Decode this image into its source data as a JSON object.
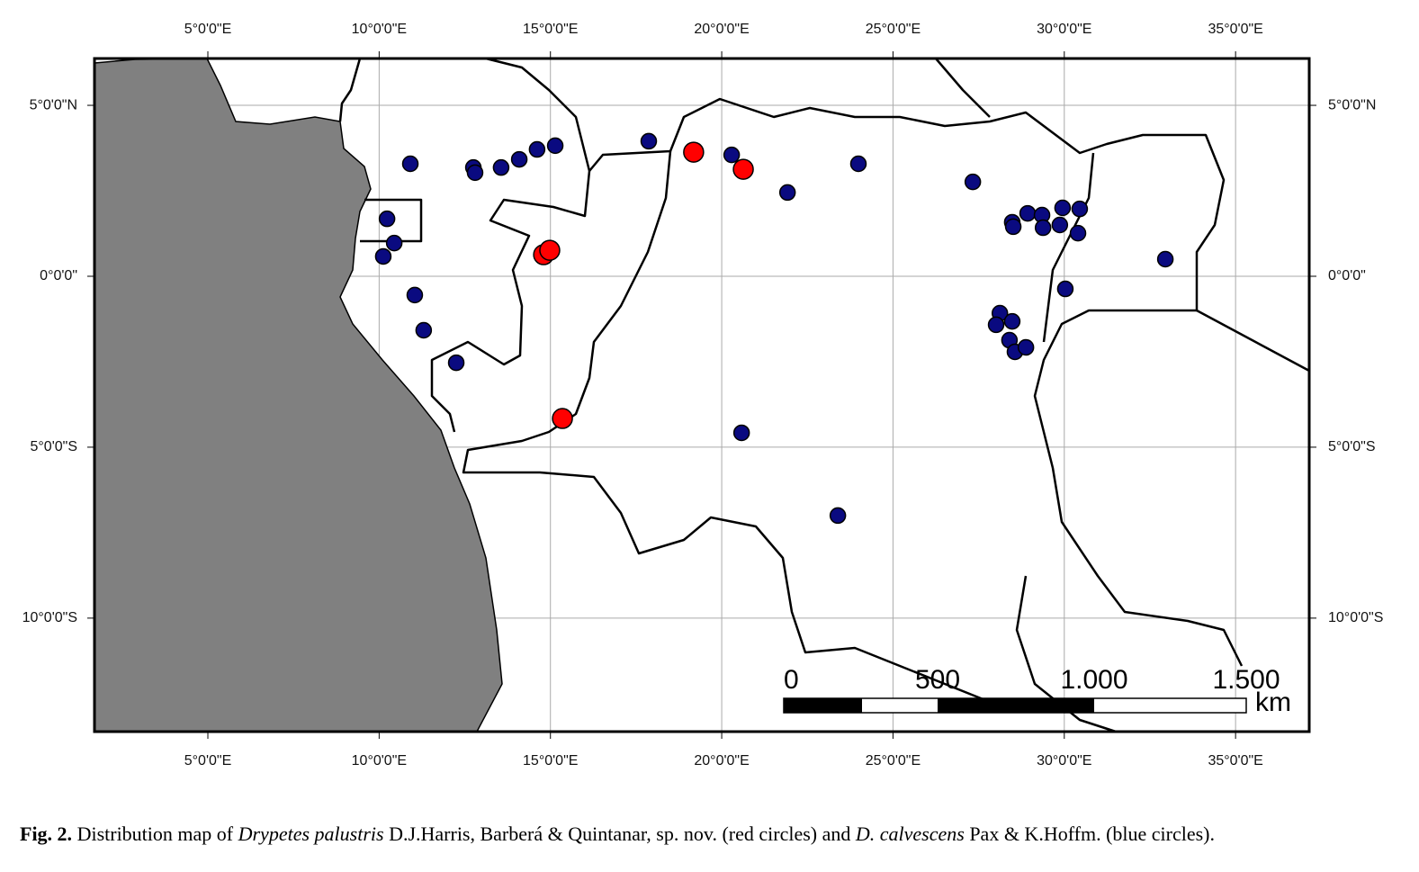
{
  "chart_data": {
    "type": "scatter",
    "xlim": [
      1.69,
      37.15
    ],
    "ylim": [
      -13.32,
      6.37
    ],
    "xticks": [
      {
        "value": 5,
        "label": "5°0'0\"E"
      },
      {
        "value": 10,
        "label": "10°0'0\"E"
      },
      {
        "value": 15,
        "label": "15°0'0\"E"
      },
      {
        "value": 20,
        "label": "20°0'0\"E"
      },
      {
        "value": 25,
        "label": "25°0'0\"E"
      },
      {
        "value": 30,
        "label": "30°0'0\"E"
      },
      {
        "value": 35,
        "label": "35°0'0\"E"
      }
    ],
    "yticks": [
      {
        "value": 5,
        "label": "5°0'0\"N"
      },
      {
        "value": 0,
        "label": "0°0'0\""
      },
      {
        "value": -5,
        "label": "5°0'0\"S"
      },
      {
        "value": -10,
        "label": "10°0'0\"S"
      }
    ],
    "grid": true,
    "series": [
      {
        "color": "#ff0000",
        "x": [
          19.18,
          20.63,
          14.8,
          14.98,
          15.35
        ],
        "values": [
          3.63,
          3.13,
          0.63,
          0.76,
          -4.16
        ]
      },
      {
        "color": "#0a0a80",
        "x": [
          10.91,
          10.23,
          10.44,
          10.12,
          11.04,
          11.3,
          12.25,
          12.75,
          12.8,
          13.56,
          14.09,
          14.61,
          15.14,
          17.87,
          20.29,
          21.92,
          23.99,
          20.58,
          23.39,
          27.33,
          28.48,
          28.51,
          28.93,
          29.35,
          29.38,
          29.87,
          29.95,
          30.45,
          30.4,
          30.03,
          32.95,
          28.12,
          28.01,
          28.48,
          28.4,
          28.56,
          28.88
        ],
        "values": [
          3.29,
          1.68,
          0.97,
          0.58,
          -0.55,
          -1.58,
          -2.53,
          3.18,
          3.03,
          3.18,
          3.42,
          3.71,
          3.82,
          3.95,
          3.55,
          2.45,
          3.29,
          -4.58,
          -7.0,
          2.76,
          1.58,
          1.45,
          1.84,
          1.79,
          1.42,
          1.5,
          2.0,
          1.97,
          1.26,
          -0.37,
          0.5,
          -1.08,
          -1.42,
          -1.32,
          -1.87,
          -2.21,
          -2.08
        ]
      }
    ],
    "scale_bar": {
      "labels": [
        "0",
        "500",
        "1.000",
        "1.500"
      ],
      "unit": "km"
    },
    "caption": {
      "label": "Fig. 2.",
      "parts": [
        " Distribution map of ",
        "Drypetes palustris",
        " D.J.Harris, Barberá & Quintanar, sp. nov. (red circles) and ",
        "D. calvescens",
        " Pax & K.Hoffm. (blue circles)."
      ]
    }
  }
}
